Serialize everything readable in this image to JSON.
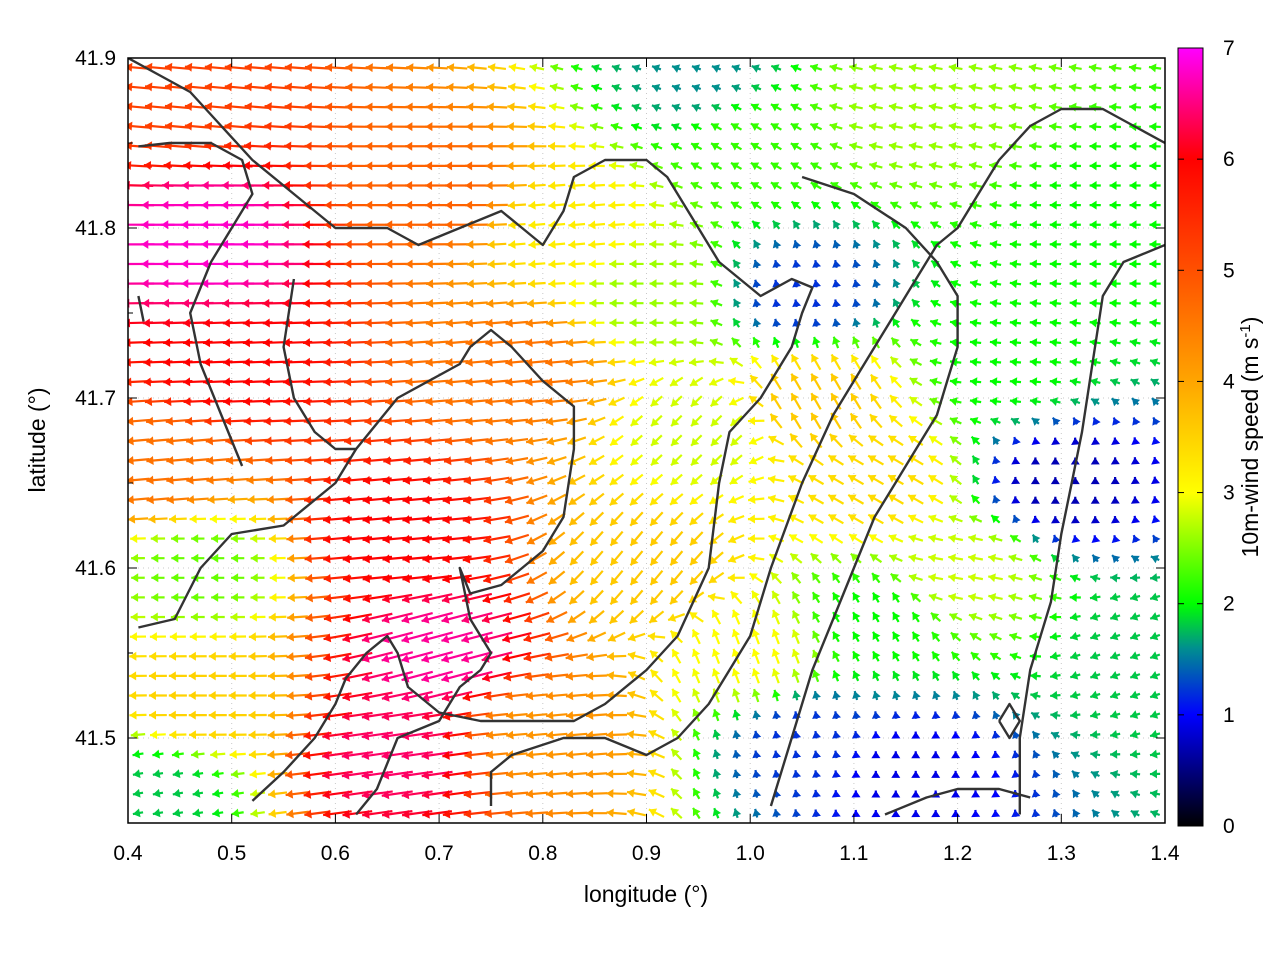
{
  "chart_data": {
    "type": "quiver",
    "xlabel": "longitude (°)",
    "ylabel": "latitude (°)",
    "xlim": [
      0.4,
      1.4
    ],
    "ylim": [
      41.45,
      41.9
    ],
    "x_ticks": [
      "0.4",
      "0.5",
      "0.6",
      "0.7",
      "0.8",
      "0.9",
      "1.0",
      "1.1",
      "1.2",
      "1.3",
      "1.4"
    ],
    "y_ticks": [
      "41.5",
      "41.6",
      "41.7",
      "41.8",
      "41.9"
    ],
    "colorbar": {
      "label_main": "10m-wind speed (m s",
      "label_sup": "-1",
      "label_close": ")",
      "range": [
        0,
        7
      ],
      "ticks": [
        "0",
        "1",
        "2",
        "3",
        "4",
        "5",
        "6",
        "7"
      ],
      "colors": [
        {
          "v": 0,
          "c": "#000000"
        },
        {
          "v": 1,
          "c": "#0000ff"
        },
        {
          "v": 1.6,
          "c": "#008f8f"
        },
        {
          "v": 2,
          "c": "#00ff00"
        },
        {
          "v": 3,
          "c": "#ffff00"
        },
        {
          "v": 4,
          "c": "#ffa500"
        },
        {
          "v": 5,
          "c": "#ff5000"
        },
        {
          "v": 6,
          "c": "#ff0000"
        },
        {
          "v": 7,
          "c": "#ff00ff"
        }
      ]
    },
    "grid": true,
    "wind_field_description": "westward winds strongest (6-7 m/s) in northwest, weak (<1 m/s) in east and southeast",
    "wind_regions": [
      {
        "x": 0.48,
        "y": 41.79,
        "speed": 6.8,
        "dir_deg": 180
      },
      {
        "x": 0.5,
        "y": 41.72,
        "speed": 6.0,
        "dir_deg": 182
      },
      {
        "x": 0.44,
        "y": 41.88,
        "speed": 5.2,
        "dir_deg": 175
      },
      {
        "x": 0.43,
        "y": 41.66,
        "speed": 4.6,
        "dir_deg": 185
      },
      {
        "x": 0.47,
        "y": 41.6,
        "speed": 2.4,
        "dir_deg": 180
      },
      {
        "x": 0.47,
        "y": 41.52,
        "speed": 3.5,
        "dir_deg": 180
      },
      {
        "x": 0.43,
        "y": 41.47,
        "speed": 1.8,
        "dir_deg": 190
      },
      {
        "x": 0.66,
        "y": 41.62,
        "speed": 6.0,
        "dir_deg": 185
      },
      {
        "x": 0.7,
        "y": 41.55,
        "speed": 6.6,
        "dir_deg": 195
      },
      {
        "x": 0.66,
        "y": 41.49,
        "speed": 6.4,
        "dir_deg": 188
      },
      {
        "x": 0.78,
        "y": 41.72,
        "speed": 4.6,
        "dir_deg": 185
      },
      {
        "x": 0.7,
        "y": 41.82,
        "speed": 4.8,
        "dir_deg": 180
      },
      {
        "x": 0.82,
        "y": 41.8,
        "speed": 3.2,
        "dir_deg": 185
      },
      {
        "x": 0.8,
        "y": 41.5,
        "speed": 4.2,
        "dir_deg": 185
      },
      {
        "x": 0.9,
        "y": 41.76,
        "speed": 2.6,
        "dir_deg": 180
      },
      {
        "x": 0.9,
        "y": 41.6,
        "speed": 3.6,
        "dir_deg": 230
      },
      {
        "x": 0.95,
        "y": 41.68,
        "speed": 2.8,
        "dir_deg": 225
      },
      {
        "x": 1.0,
        "y": 41.85,
        "speed": 2.2,
        "dir_deg": 150
      },
      {
        "x": 1.05,
        "y": 41.76,
        "speed": 1.2,
        "dir_deg": 100
      },
      {
        "x": 1.06,
        "y": 41.7,
        "speed": 3.6,
        "dir_deg": 120
      },
      {
        "x": 1.12,
        "y": 41.65,
        "speed": 3.4,
        "dir_deg": 150
      },
      {
        "x": 1.0,
        "y": 41.55,
        "speed": 3.0,
        "dir_deg": 110
      },
      {
        "x": 1.05,
        "y": 41.5,
        "speed": 1.2,
        "dir_deg": 100
      },
      {
        "x": 1.12,
        "y": 41.57,
        "speed": 2.0,
        "dir_deg": 120
      },
      {
        "x": 1.2,
        "y": 41.6,
        "speed": 2.8,
        "dir_deg": 170
      },
      {
        "x": 1.15,
        "y": 41.48,
        "speed": 0.9,
        "dir_deg": 90
      },
      {
        "x": 1.25,
        "y": 41.72,
        "speed": 2.0,
        "dir_deg": 175
      },
      {
        "x": 1.3,
        "y": 41.65,
        "speed": 0.7,
        "dir_deg": 90
      },
      {
        "x": 1.35,
        "y": 41.8,
        "speed": 2.0,
        "dir_deg": 180
      },
      {
        "x": 1.38,
        "y": 41.55,
        "speed": 1.8,
        "dir_deg": 200
      },
      {
        "x": 1.15,
        "y": 41.87,
        "speed": 2.6,
        "dir_deg": 170
      },
      {
        "x": 0.95,
        "y": 41.89,
        "speed": 1.6,
        "dir_deg": 160
      }
    ],
    "coastline_paths": [
      [
        [
          0.41,
          41.565
        ],
        [
          0.445,
          41.57
        ],
        [
          0.47,
          41.6
        ],
        [
          0.5,
          41.62
        ],
        [
          0.55,
          41.625
        ],
        [
          0.6,
          41.65
        ],
        [
          0.62,
          41.67
        ],
        [
          0.66,
          41.7
        ],
        [
          0.72,
          41.72
        ],
        [
          0.73,
          41.73
        ],
        [
          0.75,
          41.74
        ],
        [
          0.77,
          41.73
        ],
        [
          0.8,
          41.71
        ],
        [
          0.83,
          41.695
        ],
        [
          0.83,
          41.67
        ],
        [
          0.82,
          41.63
        ],
        [
          0.8,
          41.61
        ],
        [
          0.78,
          41.6
        ],
        [
          0.76,
          41.59
        ],
        [
          0.73,
          41.585
        ],
        [
          0.72,
          41.6
        ],
        [
          0.73,
          41.57
        ],
        [
          0.75,
          41.55
        ],
        [
          0.74,
          41.54
        ],
        [
          0.72,
          41.53
        ],
        [
          0.7,
          41.51
        ],
        [
          0.66,
          41.5
        ],
        [
          0.64,
          41.47
        ],
        [
          0.62,
          41.455
        ]
      ],
      [
        [
          0.52,
          41.463
        ],
        [
          0.55,
          41.48
        ],
        [
          0.58,
          41.5
        ],
        [
          0.6,
          41.52
        ],
        [
          0.61,
          41.535
        ],
        [
          0.63,
          41.55
        ],
        [
          0.65,
          41.56
        ],
        [
          0.66,
          41.55
        ],
        [
          0.67,
          41.53
        ],
        [
          0.7,
          41.515
        ],
        [
          0.74,
          41.51
        ],
        [
          0.78,
          41.51
        ],
        [
          0.83,
          41.51
        ],
        [
          0.86,
          41.52
        ],
        [
          0.9,
          41.54
        ],
        [
          0.93,
          41.56
        ],
        [
          0.96,
          41.6
        ],
        [
          0.97,
          41.65
        ],
        [
          0.98,
          41.68
        ],
        [
          1.01,
          41.7
        ],
        [
          1.04,
          41.73
        ],
        [
          1.05,
          41.75
        ],
        [
          1.06,
          41.765
        ],
        [
          1.04,
          41.77
        ],
        [
          1.01,
          41.76
        ],
        [
          0.97,
          41.78
        ],
        [
          0.95,
          41.8
        ],
        [
          0.92,
          41.83
        ],
        [
          0.9,
          41.84
        ],
        [
          0.86,
          41.84
        ],
        [
          0.83,
          41.83
        ],
        [
          0.82,
          41.81
        ],
        [
          0.8,
          41.79
        ],
        [
          0.78,
          41.8
        ],
        [
          0.76,
          41.81
        ],
        [
          0.72,
          41.8
        ],
        [
          0.68,
          41.79
        ],
        [
          0.65,
          41.8
        ],
        [
          0.6,
          41.8
        ],
        [
          0.56,
          41.82
        ],
        [
          0.52,
          41.84
        ],
        [
          0.49,
          41.86
        ],
        [
          0.46,
          41.88
        ],
        [
          0.43,
          41.89
        ],
        [
          0.4,
          41.9
        ]
      ],
      [
        [
          0.41,
          41.76
        ],
        [
          0.415,
          41.745
        ]
      ],
      [
        [
          0.51,
          41.66
        ],
        [
          0.49,
          41.69
        ],
        [
          0.47,
          41.72
        ],
        [
          0.46,
          41.75
        ],
        [
          0.48,
          41.78
        ],
        [
          0.5,
          41.8
        ],
        [
          0.52,
          41.82
        ],
        [
          0.51,
          41.84
        ],
        [
          0.48,
          41.85
        ],
        [
          0.44,
          41.85
        ],
        [
          0.41,
          41.848
        ]
      ],
      [
        [
          0.56,
          41.77
        ],
        [
          0.55,
          41.73
        ],
        [
          0.56,
          41.7
        ],
        [
          0.58,
          41.68
        ],
        [
          0.6,
          41.67
        ],
        [
          0.62,
          41.67
        ]
      ],
      [
        [
          0.75,
          41.46
        ],
        [
          0.75,
          41.48
        ],
        [
          0.77,
          41.49
        ],
        [
          0.82,
          41.5
        ],
        [
          0.86,
          41.5
        ],
        [
          0.9,
          41.49
        ],
        [
          0.93,
          41.5
        ],
        [
          0.96,
          41.52
        ],
        [
          0.98,
          41.54
        ],
        [
          1.0,
          41.56
        ],
        [
          1.02,
          41.6
        ],
        [
          1.05,
          41.65
        ],
        [
          1.08,
          41.69
        ],
        [
          1.1,
          41.71
        ],
        [
          1.12,
          41.73
        ],
        [
          1.14,
          41.75
        ],
        [
          1.16,
          41.77
        ],
        [
          1.18,
          41.79
        ],
        [
          1.2,
          41.8
        ],
        [
          1.22,
          41.82
        ],
        [
          1.24,
          41.84
        ],
        [
          1.27,
          41.86
        ],
        [
          1.3,
          41.87
        ],
        [
          1.34,
          41.87
        ],
        [
          1.37,
          41.86
        ],
        [
          1.4,
          41.85
        ]
      ],
      [
        [
          1.02,
          41.46
        ],
        [
          1.04,
          41.5
        ],
        [
          1.06,
          41.54
        ],
        [
          1.08,
          41.57
        ],
        [
          1.1,
          41.6
        ],
        [
          1.12,
          41.63
        ],
        [
          1.14,
          41.65
        ],
        [
          1.16,
          41.67
        ],
        [
          1.18,
          41.69
        ],
        [
          1.19,
          41.71
        ],
        [
          1.2,
          41.73
        ],
        [
          1.2,
          41.76
        ],
        [
          1.18,
          41.78
        ],
        [
          1.15,
          41.8
        ],
        [
          1.1,
          41.82
        ],
        [
          1.05,
          41.83
        ]
      ],
      [
        [
          1.13,
          41.455
        ],
        [
          1.17,
          41.465
        ],
        [
          1.2,
          41.47
        ],
        [
          1.24,
          41.47
        ],
        [
          1.27,
          41.465
        ]
      ],
      [
        [
          1.24,
          41.51
        ],
        [
          1.25,
          41.5
        ],
        [
          1.26,
          41.51
        ],
        [
          1.25,
          41.52
        ],
        [
          1.24,
          41.51
        ]
      ],
      [
        [
          1.26,
          41.455
        ],
        [
          1.26,
          41.5
        ],
        [
          1.27,
          41.54
        ],
        [
          1.29,
          41.58
        ],
        [
          1.3,
          41.62
        ],
        [
          1.31,
          41.65
        ],
        [
          1.32,
          41.68
        ],
        [
          1.33,
          41.72
        ],
        [
          1.34,
          41.76
        ],
        [
          1.36,
          41.78
        ],
        [
          1.4,
          41.79
        ]
      ]
    ]
  }
}
